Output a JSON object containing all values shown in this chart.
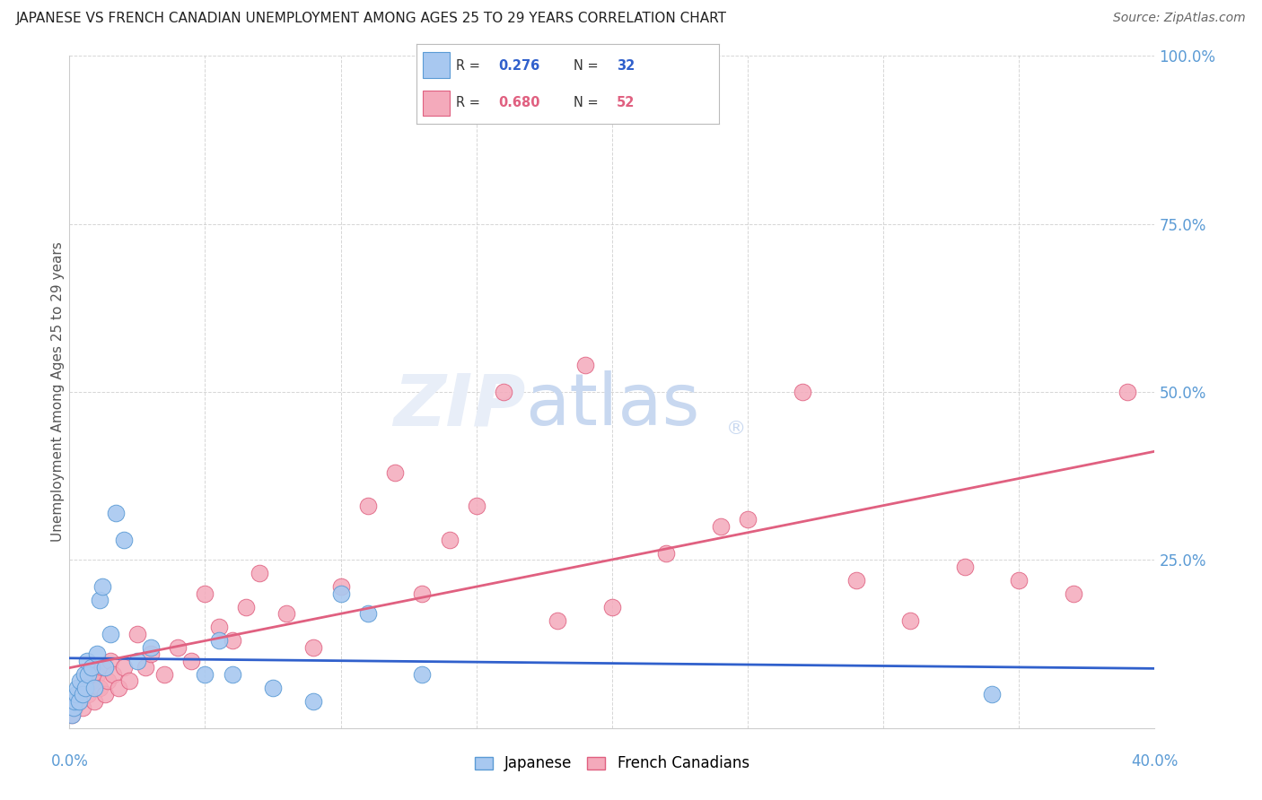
{
  "title": "JAPANESE VS FRENCH CANADIAN UNEMPLOYMENT AMONG AGES 25 TO 29 YEARS CORRELATION CHART",
  "source": "Source: ZipAtlas.com",
  "ylabel": "Unemployment Among Ages 25 to 29 years",
  "right_axis_color": "#5B9BD5",
  "japanese_fill": "#A8C8F0",
  "japanese_edge": "#5B9BD5",
  "french_fill": "#F4AABB",
  "french_edge": "#E06080",
  "japanese_line_color": "#3060CC",
  "french_line_color": "#E06080",
  "title_color": "#222222",
  "source_color": "#666666",
  "grid_color": "#cccccc",
  "japanese_x": [
    0.1,
    0.15,
    0.2,
    0.25,
    0.3,
    0.35,
    0.4,
    0.5,
    0.55,
    0.6,
    0.65,
    0.7,
    0.8,
    0.9,
    1.0,
    1.1,
    1.2,
    1.3,
    1.5,
    1.7,
    2.0,
    2.5,
    3.0,
    5.0,
    5.5,
    6.0,
    7.5,
    9.0,
    10.0,
    11.0,
    13.0,
    34.0
  ],
  "japanese_y": [
    2,
    3,
    4,
    5,
    6,
    4,
    7,
    5,
    8,
    6,
    10,
    8,
    9,
    6,
    11,
    19,
    21,
    9,
    14,
    32,
    28,
    10,
    12,
    8,
    13,
    8,
    6,
    4,
    20,
    17,
    8,
    5
  ],
  "french_x": [
    0.1,
    0.2,
    0.3,
    0.4,
    0.5,
    0.6,
    0.7,
    0.8,
    0.9,
    1.0,
    1.1,
    1.2,
    1.3,
    1.4,
    1.5,
    1.6,
    1.8,
    2.0,
    2.2,
    2.5,
    2.8,
    3.0,
    3.5,
    4.0,
    4.5,
    5.0,
    5.5,
    6.0,
    6.5,
    7.0,
    8.0,
    9.0,
    10.0,
    11.0,
    12.0,
    13.0,
    14.0,
    15.0,
    16.0,
    18.0,
    19.0,
    20.0,
    22.0,
    24.0,
    25.0,
    27.0,
    29.0,
    31.0,
    33.0,
    35.0,
    37.0,
    39.0
  ],
  "french_y": [
    2,
    3,
    4,
    5,
    3,
    6,
    5,
    7,
    4,
    8,
    6,
    9,
    5,
    7,
    10,
    8,
    6,
    9,
    7,
    14,
    9,
    11,
    8,
    12,
    10,
    20,
    15,
    13,
    18,
    23,
    17,
    12,
    21,
    33,
    38,
    20,
    28,
    33,
    50,
    16,
    54,
    18,
    26,
    30,
    31,
    50,
    22,
    16,
    24,
    22,
    20,
    50
  ],
  "xlim": [
    0,
    40
  ],
  "ylim": [
    0,
    100
  ],
  "xtick_positions": [
    0,
    5,
    10,
    15,
    20,
    25,
    30,
    35,
    40
  ],
  "ytick_positions": [
    0,
    25,
    50,
    75,
    100
  ],
  "watermark_zip_color": "#E8EEF8",
  "watermark_atlas_color": "#C8D8F0"
}
